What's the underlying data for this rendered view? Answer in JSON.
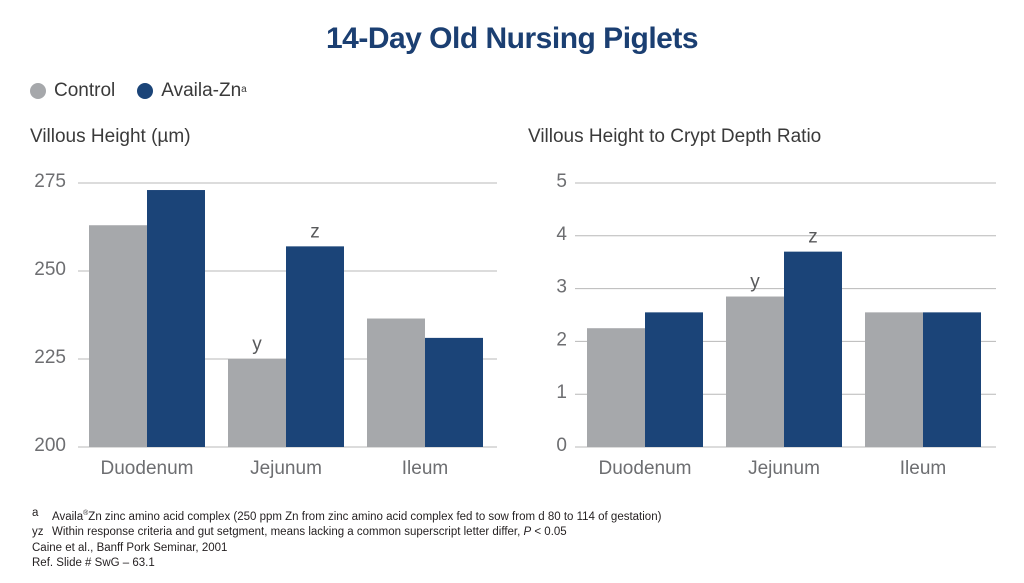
{
  "title": "14-Day Old Nursing Piglets",
  "colors": {
    "control": "#a6a8ab",
    "availa": "#1b4478",
    "title": "#1b3f72",
    "grid": "#b8b8b8"
  },
  "legend": {
    "items": [
      {
        "label": "Control",
        "color": "#a6a8ab",
        "superscript": ""
      },
      {
        "label": "Availa-Zn",
        "color": "#1b4478",
        "superscript": "a"
      }
    ]
  },
  "chart_data": [
    {
      "type": "bar",
      "title": "Villous Height (µm)",
      "categories": [
        "Duodenum",
        "Jejunum",
        "Ileum"
      ],
      "series": [
        {
          "name": "Control",
          "values": [
            263,
            225,
            236.5
          ]
        },
        {
          "name": "Availa-Zn",
          "values": [
            273,
            257,
            231
          ]
        }
      ],
      "ylim": [
        200,
        275
      ],
      "yticks": [
        200,
        225,
        250,
        275
      ],
      "grid": true,
      "annotations": [
        {
          "category": "Jejunum",
          "series": "Control",
          "text": "y"
        },
        {
          "category": "Jejunum",
          "series": "Availa-Zn",
          "text": "z"
        }
      ]
    },
    {
      "type": "bar",
      "title": "Villous Height to Crypt Depth Ratio",
      "categories": [
        "Duodenum",
        "Jejunum",
        "Ileum"
      ],
      "series": [
        {
          "name": "Control",
          "values": [
            2.25,
            2.85,
            2.55
          ]
        },
        {
          "name": "Availa-Zn",
          "values": [
            2.55,
            3.7,
            2.55
          ]
        }
      ],
      "ylim": [
        0,
        5
      ],
      "yticks": [
        0,
        1,
        2,
        3,
        4,
        5
      ],
      "grid": true,
      "annotations": [
        {
          "category": "Jejunum",
          "series": "Control",
          "text": "y"
        },
        {
          "category": "Jejunum",
          "series": "Availa-Zn",
          "text": "z"
        }
      ]
    }
  ],
  "footnotes": {
    "a_mark": "a",
    "a_text_1": "Availa",
    "a_reg": "®",
    "a_text_2": "Zn zinc amino acid complex (250 ppm Zn from zinc amino acid complex fed to sow from d 80 to 114 of gestation)",
    "yz_mark": "yz",
    "yz_text": "Within response criteria and gut setgment, means lacking a common superscript letter differ,",
    "yz_p": "P",
    "yz_value": "< 0.05",
    "citation": "Caine et al., Banff Pork Seminar, 2001",
    "ref": "Ref. Slide # SwG – 63.1"
  }
}
